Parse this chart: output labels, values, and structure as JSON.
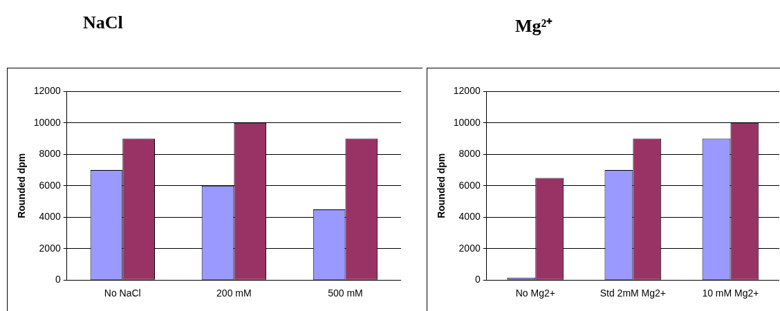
{
  "chart_data": [
    {
      "type": "bar",
      "title": "NaCl",
      "ylabel": "Rounded dpm",
      "categories": [
        "No NaCl",
        "200 mM",
        "500 mM"
      ],
      "series": [
        {
          "color": "#9999ff",
          "values": [
            7000,
            6000,
            4500
          ]
        },
        {
          "color": "#993366",
          "values": [
            9000,
            10000,
            9000
          ]
        }
      ],
      "ylim": [
        0,
        12000
      ],
      "yticks": [
        0,
        2000,
        4000,
        6000,
        8000,
        10000,
        12000
      ],
      "grid": "y",
      "legend": false
    },
    {
      "type": "bar",
      "title": "Mg²⁺",
      "ylabel": "Rounded dpm",
      "categories": [
        "No Mg2+",
        "Std 2mM Mg2+",
        "10 mM Mg2+"
      ],
      "series": [
        {
          "color": "#9999ff",
          "values": [
            150,
            7000,
            9000
          ]
        },
        {
          "color": "#993366",
          "values": [
            6500,
            9000,
            10000
          ]
        }
      ],
      "ylim": [
        0,
        12000
      ],
      "yticks": [
        0,
        2000,
        4000,
        6000,
        8000,
        10000,
        12000
      ],
      "grid": "y",
      "legend": false
    }
  ]
}
